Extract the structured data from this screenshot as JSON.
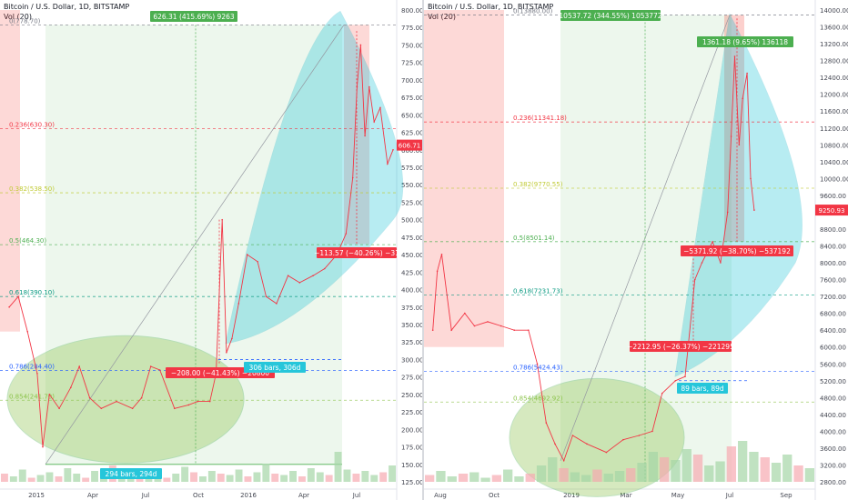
{
  "chart_data": [
    {
      "type": "line",
      "title": "Bitcoin / U.S. Dollar, 1D, BITSTAMP",
      "volume_label": "Vol (20)",
      "price_axis": {
        "min": 125,
        "max": 800,
        "scale": "linear",
        "ticks": [
          "125.00",
          "150.00",
          "175.00",
          "200.00",
          "225.00",
          "250.00",
          "275.00",
          "300.00",
          "325.00",
          "350.00",
          "375.00",
          "400.00",
          "425.00",
          "450.00",
          "475.00",
          "500.00",
          "525.00",
          "550.00",
          "575.00",
          "600.00",
          "625.00",
          "650.00",
          "675.00",
          "700.00",
          "725.00",
          "750.00",
          "775.00",
          "800.00"
        ]
      },
      "time_axis": {
        "ticks": [
          "2015",
          "Apr",
          "Jul",
          "Oct",
          "2016",
          "Apr",
          "Jul"
        ]
      },
      "last_price": "606.71",
      "fib_levels": [
        {
          "label": "0(778.70)",
          "price": 778.7,
          "color": "#787b86"
        },
        {
          "label": "0.236(630.30)",
          "price": 630.3,
          "color": "#f23645"
        },
        {
          "label": "0.382(538.50)",
          "price": 538.5,
          "color": "#c0ca33"
        },
        {
          "label": "0.5(464.30)",
          "price": 464.3,
          "color": "#4caf50"
        },
        {
          "label": "0.618(390.10)",
          "price": 390.1,
          "color": "#089981"
        },
        {
          "label": "0.786(284.40)",
          "price": 284.4,
          "color": "#2962ff"
        },
        {
          "label": "0.854(241.70)",
          "price": 241.7,
          "color": "#8bc34a"
        }
      ],
      "annotations": {
        "rise_label": "626.31 (415.69%) 9263",
        "drop_label": "−113.57 (−40.26%) −31",
        "fall_label": "−208.00 (−41.43%) −20800",
        "bars_label": "294 bars, 294d",
        "range_label": "306 bars, 306d"
      },
      "series": [
        {
          "x": [
            "2014-11-20",
            "2014-12-05",
            "2014-12-20",
            "2015-01-05",
            "2015-01-14",
            "2015-01-25",
            "2015-02-10",
            "2015-03-01",
            "2015-03-15",
            "2015-04-01",
            "2015-04-20",
            "2015-05-15",
            "2015-06-10",
            "2015-06-25",
            "2015-07-10",
            "2015-07-25",
            "2015-08-18",
            "2015-09-10",
            "2015-09-25",
            "2015-10-15",
            "2015-10-25",
            "2015-11-04",
            "2015-11-11",
            "2015-11-20",
            "2015-12-01",
            "2015-12-15",
            "2016-01-01",
            "2016-01-15",
            "2016-02-01",
            "2016-02-20",
            "2016-03-10",
            "2016-04-01",
            "2016-04-20",
            "2016-05-10",
            "2016-05-25",
            "2016-06-05",
            "2016-06-12",
            "2016-06-18",
            "2016-06-25",
            "2016-07-02",
            "2016-07-10",
            "2016-07-20",
            "2016-08-01",
            "2016-08-10"
          ],
          "values": [
            375,
            390,
            340,
            280,
            175,
            250,
            230,
            260,
            290,
            245,
            230,
            240,
            230,
            245,
            290,
            285,
            230,
            235,
            240,
            240,
            280,
            500,
            310,
            330,
            380,
            450,
            440,
            390,
            380,
            420,
            410,
            420,
            430,
            450,
            480,
            560,
            690,
            750,
            620,
            690,
            640,
            660,
            580,
            600
          ]
        }
      ]
    },
    {
      "type": "line",
      "title": "Bitcoin / U.S. Dollar, 1D, BITSTAMP",
      "volume_label": "Vol (20)",
      "price_axis": {
        "min": 2800,
        "max": 14000,
        "scale": "linear",
        "ticks": [
          "2800.00",
          "3200.00",
          "3600.00",
          "4000.00",
          "4400.00",
          "4800.00",
          "5200.00",
          "5600.00",
          "6000.00",
          "6400.00",
          "6800.00",
          "7200.00",
          "7600.00",
          "8000.00",
          "8400.00",
          "8800.00",
          "9200.00",
          "9600.00",
          "10000.00",
          "10400.00",
          "10800.00",
          "11200.00",
          "11600.00",
          "12000.00",
          "12400.00",
          "12800.00",
          "13200.00",
          "13600.00",
          "14000.00"
        ]
      },
      "time_axis": {
        "ticks": [
          "Aug",
          "Oct",
          "2019",
          "Mar",
          "May",
          "Jul",
          "Sep"
        ]
      },
      "last_price": "9250.93",
      "fib_levels": [
        {
          "label": "0(13880.00)",
          "price": 13880,
          "color": "#787b86"
        },
        {
          "label": "0.236(11341.18)",
          "price": 11341.18,
          "color": "#f23645"
        },
        {
          "label": "0.382(9770.55)",
          "price": 9770.55,
          "color": "#c0ca33"
        },
        {
          "label": "0.5(8501.14)",
          "price": 8501.14,
          "color": "#4caf50"
        },
        {
          "label": "0.618(7231.73)",
          "price": 7231.73,
          "color": "#089981"
        },
        {
          "label": "0.786(5424.43)",
          "price": 5424.43,
          "color": "#2962ff"
        },
        {
          "label": "0.854(4692.92)",
          "price": 4692.92,
          "color": "#8bc34a"
        }
      ],
      "annotations": {
        "rise_label": "10537.72 (344.55%) 1053772",
        "peak_label": "1361.18 (9.65%) 136118",
        "drop_label": "−5371.92 (−38.70%) −537192",
        "fall_label": "−2212.95 (−26.37%) −221295",
        "bars_label": "89 bars, 89d"
      },
      "series": [
        {
          "x": [
            "2018-07-20",
            "2018-07-25",
            "2018-07-30",
            "2018-08-10",
            "2018-08-25",
            "2018-09-05",
            "2018-09-20",
            "2018-10-05",
            "2018-10-20",
            "2018-11-05",
            "2018-11-15",
            "2018-11-25",
            "2018-12-05",
            "2018-12-15",
            "2018-12-25",
            "2019-01-10",
            "2019-02-01",
            "2019-02-20",
            "2019-03-10",
            "2019-03-25",
            "2019-04-05",
            "2019-04-20",
            "2019-05-01",
            "2019-05-12",
            "2019-05-20",
            "2019-06-01",
            "2019-06-10",
            "2019-06-18",
            "2019-06-22",
            "2019-06-26",
            "2019-07-01",
            "2019-07-05",
            "2019-07-10",
            "2019-07-14",
            "2019-07-18"
          ],
          "values": [
            6400,
            7800,
            8200,
            6400,
            6800,
            6500,
            6600,
            6500,
            6400,
            6400,
            5600,
            4200,
            3700,
            3300,
            3900,
            3700,
            3500,
            3800,
            3900,
            4000,
            4900,
            5200,
            5300,
            7600,
            8000,
            8500,
            8000,
            9200,
            11000,
            12900,
            10800,
            11900,
            12500,
            10000,
            9250
          ]
        }
      ]
    }
  ]
}
